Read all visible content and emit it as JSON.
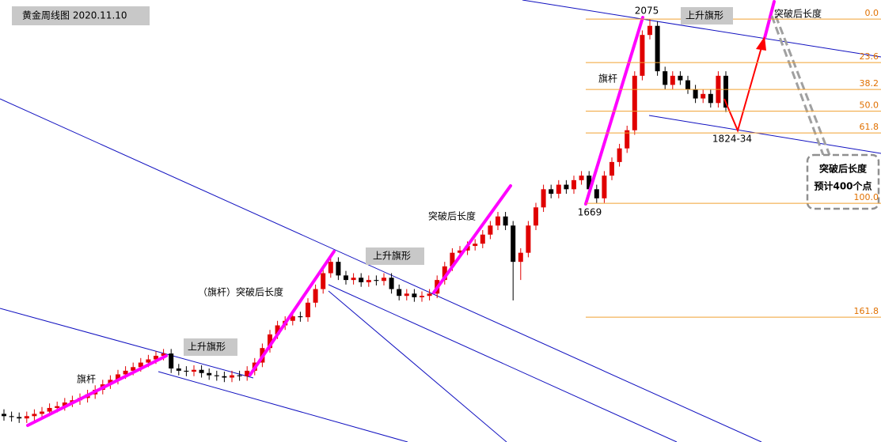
{
  "chart_data": {
    "type": "candlestick",
    "title": "黄金周线图 2020.11.10",
    "ylim": [
      1143,
      2117
    ],
    "up_color": "#e00000",
    "down_color": "#000000",
    "open": [
      1205,
      1200,
      1198,
      1195,
      1200,
      1205,
      1210,
      1218,
      1222,
      1230,
      1235,
      1240,
      1248,
      1258,
      1270,
      1280,
      1292,
      1300,
      1308,
      1318,
      1325,
      1333,
      1338,
      1305,
      1300,
      1298,
      1302,
      1295,
      1290,
      1288,
      1285,
      1290,
      1288,
      1300,
      1318,
      1350,
      1380,
      1400,
      1410,
      1420,
      1418,
      1450,
      1480,
      1515,
      1540,
      1510,
      1500,
      1505,
      1495,
      1500,
      1498,
      1505,
      1480,
      1465,
      1470,
      1462,
      1465,
      1470,
      1500,
      1530,
      1560,
      1565,
      1575,
      1580,
      1600,
      1620,
      1640,
      1620,
      1540,
      1560,
      1620,
      1660,
      1700,
      1690,
      1710,
      1700,
      1720,
      1730,
      1700,
      1680,
      1730,
      1760,
      1790,
      1830,
      1950,
      2040,
      2060,
      1960,
      1930,
      1950,
      1940,
      1920,
      1900,
      1910,
      1890,
      1950
    ],
    "high": [
      1215,
      1210,
      1208,
      1210,
      1215,
      1220,
      1228,
      1232,
      1240,
      1245,
      1250,
      1258,
      1268,
      1280,
      1290,
      1302,
      1310,
      1318,
      1328,
      1335,
      1343,
      1348,
      1348,
      1315,
      1310,
      1312,
      1312,
      1305,
      1300,
      1298,
      1300,
      1300,
      1310,
      1328,
      1360,
      1390,
      1410,
      1420,
      1430,
      1430,
      1460,
      1490,
      1525,
      1550,
      1550,
      1520,
      1515,
      1515,
      1510,
      1510,
      1515,
      1515,
      1490,
      1480,
      1480,
      1475,
      1480,
      1510,
      1540,
      1570,
      1575,
      1585,
      1590,
      1610,
      1630,
      1650,
      1650,
      1630,
      1570,
      1630,
      1670,
      1710,
      1710,
      1720,
      1720,
      1730,
      1740,
      1740,
      1710,
      1740,
      1770,
      1800,
      1840,
      1960,
      2050,
      2075,
      2070,
      1970,
      1960,
      1960,
      1950,
      1930,
      1920,
      1920,
      1960,
      1960
    ],
    "low": [
      1190,
      1188,
      1185,
      1185,
      1190,
      1195,
      1200,
      1208,
      1212,
      1220,
      1225,
      1230,
      1238,
      1248,
      1260,
      1270,
      1282,
      1290,
      1298,
      1308,
      1315,
      1323,
      1295,
      1290,
      1288,
      1288,
      1285,
      1280,
      1278,
      1275,
      1275,
      1278,
      1278,
      1290,
      1308,
      1340,
      1370,
      1390,
      1400,
      1408,
      1408,
      1440,
      1470,
      1505,
      1500,
      1490,
      1490,
      1485,
      1485,
      1488,
      1488,
      1470,
      1455,
      1455,
      1452,
      1452,
      1455,
      1460,
      1490,
      1520,
      1550,
      1555,
      1565,
      1570,
      1590,
      1610,
      1610,
      1455,
      1500,
      1550,
      1610,
      1650,
      1680,
      1680,
      1690,
      1690,
      1710,
      1690,
      1669,
      1670,
      1720,
      1750,
      1780,
      1820,
      1940,
      2030,
      1950,
      1920,
      1920,
      1930,
      1910,
      1890,
      1890,
      1880,
      1880,
      1870
    ],
    "close": [
      1200,
      1198,
      1195,
      1200,
      1205,
      1210,
      1218,
      1222,
      1230,
      1235,
      1240,
      1248,
      1258,
      1270,
      1280,
      1292,
      1300,
      1308,
      1318,
      1325,
      1333,
      1338,
      1305,
      1300,
      1298,
      1302,
      1295,
      1290,
      1288,
      1285,
      1290,
      1288,
      1300,
      1318,
      1350,
      1380,
      1400,
      1410,
      1420,
      1418,
      1450,
      1480,
      1515,
      1540,
      1510,
      1500,
      1505,
      1495,
      1500,
      1498,
      1505,
      1480,
      1465,
      1470,
      1462,
      1465,
      1470,
      1500,
      1530,
      1560,
      1565,
      1575,
      1580,
      1600,
      1620,
      1640,
      1620,
      1540,
      1560,
      1620,
      1660,
      1700,
      1690,
      1710,
      1700,
      1720,
      1730,
      1700,
      1680,
      1730,
      1760,
      1790,
      1830,
      1950,
      2040,
      2060,
      1960,
      1930,
      1950,
      1940,
      1920,
      1900,
      1910,
      1890,
      1950,
      1880
    ],
    "fib": {
      "high": 2075,
      "low": 1669,
      "color": "#f0a030",
      "levels": [
        {
          "value": 0,
          "label": "0.0"
        },
        23.6,
        38.2,
        {
          "value": 50,
          "label": "50.0"
        },
        61.8,
        {
          "value": 100,
          "label": "100.0"
        },
        161.8
      ]
    },
    "annotations": {
      "high_label": "2075",
      "low_label": "1669",
      "target_label": "1824-34",
      "flag_top": "上升旗形",
      "flag_mid": "上升旗形",
      "flag_low": "上升旗形",
      "pole_top": "旗杆",
      "pole_low": "旗杆",
      "breakout_top": "突破后长度",
      "breakout_mid": "突破后长度",
      "breakout_low": "（旗杆）突破后长度",
      "callout_1": "突破后长度",
      "callout_2": "预计400个点"
    }
  }
}
